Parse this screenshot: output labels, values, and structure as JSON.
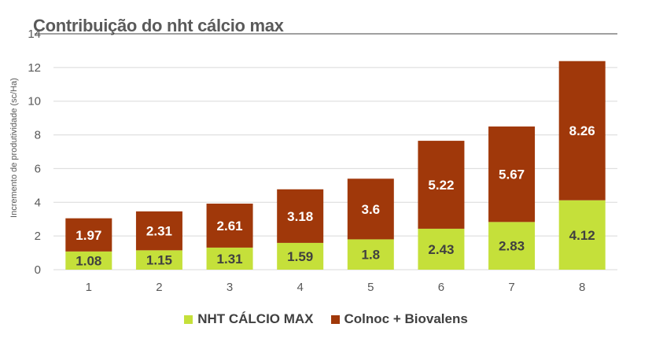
{
  "chart_data": {
    "type": "bar",
    "stacked": true,
    "title": "Contribuição do nht cálcio max",
    "xlabel": "",
    "ylabel": "Incremento de produtividade (sc/Ha)",
    "categories": [
      "1",
      "2",
      "3",
      "4",
      "5",
      "6",
      "7",
      "8"
    ],
    "series": [
      {
        "name": "NHT CÁLCIO MAX",
        "color": "#c5e03a",
        "values": [
          1.08,
          1.15,
          1.31,
          1.59,
          1.8,
          2.43,
          2.83,
          4.12
        ],
        "labels": [
          "1.08",
          "1.15",
          "1.31",
          "1.59",
          "1.8",
          "2.43",
          "2.83",
          "4.12"
        ]
      },
      {
        "name": "Colnoc + Biovalens",
        "color": "#a0380a",
        "values": [
          1.97,
          2.31,
          2.61,
          3.18,
          3.6,
          5.22,
          5.67,
          8.26
        ],
        "labels": [
          "1.97",
          "2.31",
          "2.61",
          "3.18",
          "3.6",
          "5.22",
          "5.67",
          "8.26"
        ]
      }
    ],
    "yticks": [
      "0",
      "2",
      "4",
      "6",
      "8",
      "10",
      "12",
      "14"
    ],
    "ylim": [
      0,
      14
    ],
    "grid": true,
    "legend_position": "bottom"
  }
}
